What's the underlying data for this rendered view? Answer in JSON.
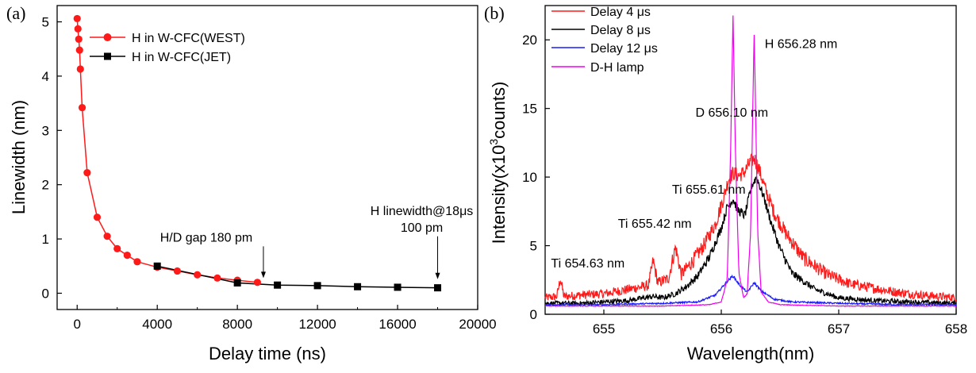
{
  "chart_data": [
    {
      "type": "scatter",
      "panel": "(a)",
      "xlabel": "Delay time (ns)",
      "ylabel": "Linewidth (nm)",
      "xlim": [
        -1000,
        20000
      ],
      "ylim": [
        -0.3,
        5.3
      ],
      "xticks": [
        "0",
        "4000",
        "8000",
        "12000",
        "16000",
        "20000"
      ],
      "yticks": [
        "0",
        "1",
        "2",
        "3",
        "4",
        "5"
      ],
      "legend_position": "top-left",
      "series": [
        {
          "name": "H in W-CFC(WEST)",
          "color": "#ff1a1a",
          "marker": "circle",
          "x": [
            0,
            40,
            80,
            120,
            160,
            250,
            500,
            1000,
            1500,
            2000,
            2500,
            3000,
            4000,
            5000,
            6000,
            7000,
            8000,
            9000
          ],
          "y": [
            5.06,
            4.87,
            4.68,
            4.48,
            4.13,
            3.42,
            2.22,
            1.4,
            1.05,
            0.82,
            0.7,
            0.58,
            0.48,
            0.41,
            0.34,
            0.28,
            0.24,
            0.2
          ]
        },
        {
          "name": "H in W-CFC(JET)",
          "color": "#000000",
          "marker": "square",
          "x": [
            4000,
            8000,
            10000,
            12000,
            14000,
            16000,
            18000
          ],
          "y": [
            0.5,
            0.19,
            0.15,
            0.14,
            0.12,
            0.11,
            0.1
          ]
        }
      ],
      "annotations": [
        {
          "lines": [
            "H/D gap 180 pm"
          ],
          "x": 9300,
          "y": 0.25
        },
        {
          "lines": [
            "H linewidth@18μs",
            "100 pm"
          ],
          "x": 18000,
          "y": 0.23
        }
      ]
    },
    {
      "type": "line",
      "panel": "(b)",
      "xlabel": "Wavelength(nm)",
      "ylabel_parts": [
        "Intensity(x10",
        "3",
        "counts)"
      ],
      "xlim": [
        654.5,
        658.0
      ],
      "ylim": [
        0,
        22.5
      ],
      "xticks": [
        "655",
        "656",
        "657",
        "658"
      ],
      "yticks": [
        "0",
        "5",
        "10",
        "15",
        "20"
      ],
      "legend_position": "top-left",
      "series": [
        {
          "name": "Delay 4 μs",
          "color": "#ff1a1a",
          "x": [
            654.5,
            654.6,
            654.63,
            654.66,
            654.8,
            655.0,
            655.2,
            655.38,
            655.42,
            655.46,
            655.55,
            655.61,
            655.66,
            655.75,
            655.85,
            655.95,
            656.02,
            656.06,
            656.1,
            656.15,
            656.2,
            656.24,
            656.28,
            656.32,
            656.38,
            656.45,
            656.55,
            656.7,
            656.9,
            657.1,
            657.3,
            657.5,
            657.7,
            658.0
          ],
          "y": [
            1.2,
            1.3,
            2.6,
            1.3,
            1.4,
            1.5,
            1.8,
            2.1,
            3.9,
            2.3,
            2.6,
            4.9,
            2.9,
            3.8,
            5.0,
            6.6,
            8.5,
            9.8,
            10.3,
            10.1,
            10.4,
            11.0,
            11.4,
            10.6,
            9.0,
            7.4,
            5.9,
            4.1,
            2.9,
            2.2,
            1.9,
            1.6,
            1.4,
            1.2
          ]
        },
        {
          "name": "Delay 8 μs",
          "color": "#000000",
          "x": [
            654.5,
            654.8,
            655.0,
            655.2,
            655.42,
            655.5,
            655.61,
            655.7,
            655.8,
            655.9,
            656.0,
            656.05,
            656.1,
            656.14,
            656.2,
            656.26,
            656.3,
            656.36,
            656.42,
            656.5,
            656.6,
            656.8,
            657.0,
            657.3,
            657.6,
            658.0
          ],
          "y": [
            0.8,
            0.8,
            0.9,
            1.0,
            1.3,
            1.2,
            1.5,
            2.0,
            2.8,
            4.2,
            6.3,
            7.8,
            8.4,
            7.6,
            7.2,
            9.4,
            10.0,
            8.6,
            6.8,
            4.8,
            3.0,
            1.8,
            1.2,
            1.0,
            0.9,
            0.8
          ]
        },
        {
          "name": "Delay 12 μs",
          "color": "#1a1aff",
          "x": [
            654.5,
            655.0,
            655.5,
            655.8,
            655.95,
            656.05,
            656.1,
            656.15,
            656.22,
            656.28,
            656.34,
            656.45,
            656.6,
            657.0,
            657.5,
            658.0
          ],
          "y": [
            0.7,
            0.7,
            0.8,
            0.9,
            1.4,
            2.4,
            2.8,
            2.2,
            1.6,
            2.3,
            1.7,
            1.1,
            0.9,
            0.8,
            0.7,
            0.7
          ]
        },
        {
          "name": "D-H lamp",
          "color": "#ee00ee",
          "x": [
            654.5,
            655.5,
            655.9,
            656.0,
            656.05,
            656.08,
            656.1,
            656.12,
            656.15,
            656.19,
            656.22,
            656.25,
            656.27,
            656.28,
            656.29,
            656.31,
            656.34,
            656.4,
            656.5,
            657.0,
            658.0
          ],
          "y": [
            0.6,
            0.6,
            0.7,
            0.9,
            2.5,
            12.0,
            21.8,
            12.0,
            3.0,
            1.2,
            1.5,
            6.0,
            16.0,
            20.4,
            16.0,
            6.0,
            1.6,
            0.9,
            0.7,
            0.6,
            0.6
          ]
        }
      ],
      "annotations": [
        {
          "text": "H 656.28 nm",
          "x": 656.37,
          "y": 19.4
        },
        {
          "text": "D 656.10 nm",
          "x": 655.78,
          "y": 14.4
        },
        {
          "text": "Ti 655.61 nm",
          "x": 655.58,
          "y": 8.8
        },
        {
          "text": "Ti 655.42 nm",
          "x": 655.12,
          "y": 6.3
        },
        {
          "text": "Ti 654.63 nm",
          "x": 654.55,
          "y": 3.4
        }
      ]
    }
  ]
}
